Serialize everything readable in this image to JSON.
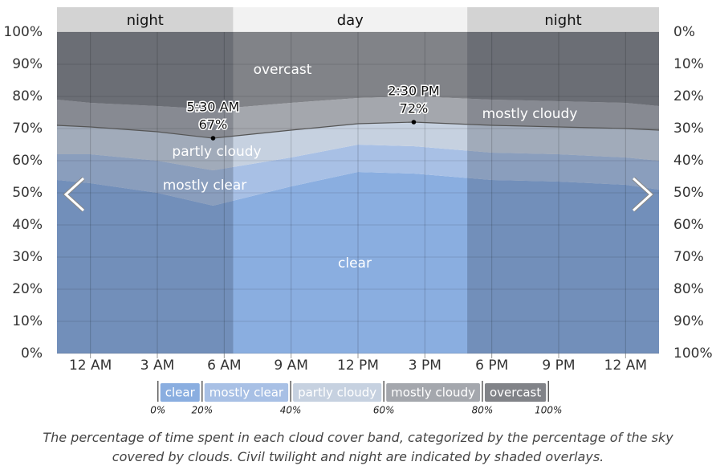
{
  "chart_data": {
    "type": "stacked-area",
    "x": [
      -1.5,
      0,
      3,
      5.5,
      9,
      12,
      14.5,
      18,
      21,
      24,
      25.5
    ],
    "xlim": [
      -1.5,
      25.5
    ],
    "xticks": [
      {
        "value": 0,
        "label": "12 AM"
      },
      {
        "value": 3,
        "label": "3 AM"
      },
      {
        "value": 6,
        "label": "6 AM"
      },
      {
        "value": 9,
        "label": "9 AM"
      },
      {
        "value": 12,
        "label": "12 PM"
      },
      {
        "value": 15,
        "label": "3 PM"
      },
      {
        "value": 18,
        "label": "6 PM"
      },
      {
        "value": 21,
        "label": "9 PM"
      },
      {
        "value": 24,
        "label": "12 AM"
      }
    ],
    "ylim": [
      0,
      100
    ],
    "yticks": [
      {
        "value": 0,
        "label": "0%"
      },
      {
        "value": 10,
        "label": "10%"
      },
      {
        "value": 20,
        "label": "20%"
      },
      {
        "value": 30,
        "label": "30%"
      },
      {
        "value": 40,
        "label": "40%"
      },
      {
        "value": 50,
        "label": "50%"
      },
      {
        "value": 60,
        "label": "60%"
      },
      {
        "value": 70,
        "label": "70%"
      },
      {
        "value": 80,
        "label": "80%"
      },
      {
        "value": 90,
        "label": "90%"
      },
      {
        "value": 100,
        "label": "100%"
      }
    ],
    "y2lim": [
      100,
      0
    ],
    "y2ticks": [
      {
        "value": 0,
        "label": "0%"
      },
      {
        "value": 10,
        "label": "10%"
      },
      {
        "value": 20,
        "label": "20%"
      },
      {
        "value": 30,
        "label": "30%"
      },
      {
        "value": 40,
        "label": "40%"
      },
      {
        "value": 50,
        "label": "50%"
      },
      {
        "value": 60,
        "label": "60%"
      },
      {
        "value": 70,
        "label": "70%"
      },
      {
        "value": 80,
        "label": "80%"
      },
      {
        "value": 90,
        "label": "90%"
      },
      {
        "value": 100,
        "label": "100%"
      }
    ],
    "grid": true,
    "series": [
      {
        "name": "clear",
        "color": "#8aaee0",
        "values": [
          54,
          53,
          50,
          46,
          52,
          56.5,
          56,
          54,
          53.5,
          52.5,
          51
        ]
      },
      {
        "name": "mostly clear",
        "color": "#a8c0e5",
        "values": [
          8,
          9,
          10,
          11,
          9,
          8.5,
          8.5,
          8.5,
          8.5,
          8.5,
          9
        ]
      },
      {
        "name": "partly cloudy",
        "color": "#c6d1e0",
        "values": [
          9,
          8.5,
          9,
          10,
          8.5,
          6.5,
          7.5,
          8.5,
          8.5,
          9,
          9.5
        ]
      },
      {
        "name": "mostly cloudy",
        "color": "#a4a7ad",
        "values": [
          8,
          7.5,
          8,
          9,
          8.5,
          8,
          8,
          8,
          8,
          8,
          7.5
        ]
      },
      {
        "name": "overcast",
        "color": "#818388",
        "values": [
          21,
          22,
          23,
          24,
          22,
          20.5,
          20,
          21,
          21.5,
          22,
          23
        ]
      }
    ],
    "overlays": [
      {
        "label": "night",
        "start": -1.5,
        "end": 6.4
      },
      {
        "label": "day",
        "start": 6.4,
        "end": 16.9
      },
      {
        "label": "night",
        "start": 16.9,
        "end": 25.5
      }
    ],
    "annotations": [
      {
        "x": 5.5,
        "time": "5:30 AM",
        "value": 67,
        "value_label": "67%"
      },
      {
        "x": 14.5,
        "time": "2:30 PM",
        "value": 72,
        "value_label": "72%"
      }
    ],
    "legend_ticks": [
      {
        "value": 0,
        "label": "0%"
      },
      {
        "value": 20,
        "label": "20%"
      },
      {
        "value": 40,
        "label": "40%"
      },
      {
        "value": 60,
        "label": "60%"
      },
      {
        "value": 80,
        "label": "80%"
      },
      {
        "value": 100,
        "label": "100%"
      }
    ],
    "caption": "The percentage of time spent in each cloud cover band, categorized by the percentage of the sky covered by clouds. Civil twilight and night are indicated by shaded overlays."
  }
}
